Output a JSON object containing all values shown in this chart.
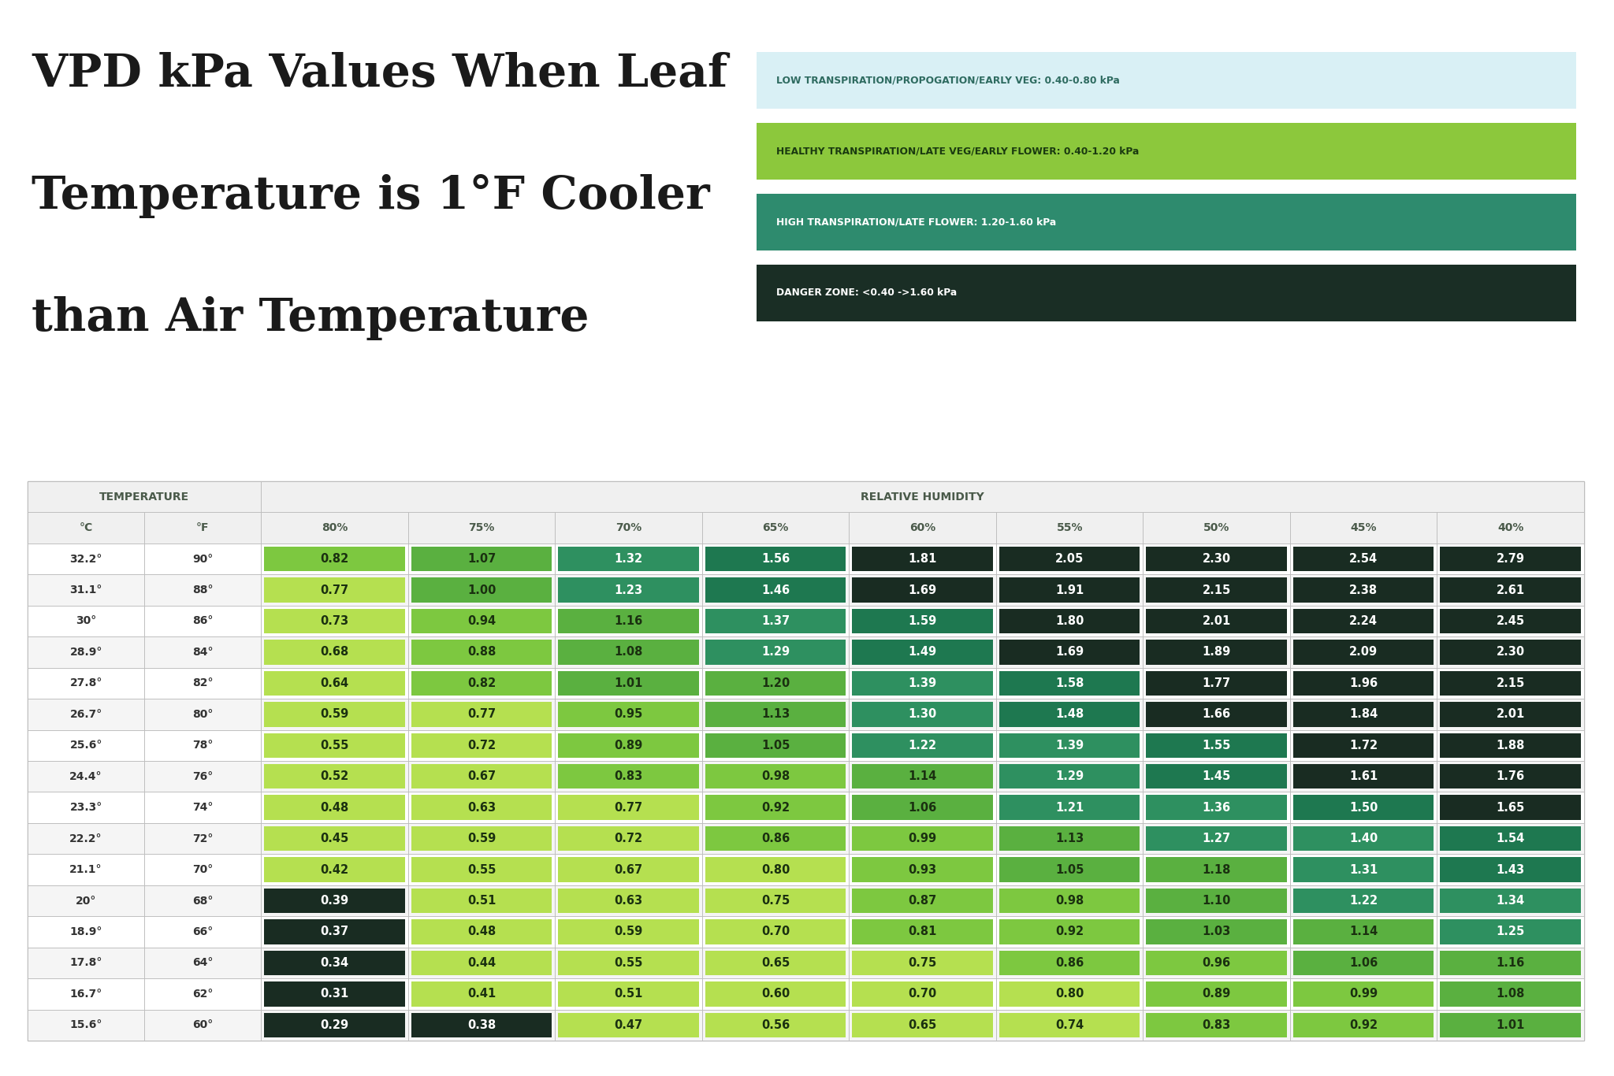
{
  "title_line1": "VPD kPa Values When Leaf",
  "title_line2": "Temperature is 1°F Cooler",
  "title_line3": "than Air Temperature",
  "background_color": "#ffffff",
  "temp_c": [
    "32.2°",
    "31.1°",
    "30°",
    "28.9°",
    "27.8°",
    "26.7°",
    "25.6°",
    "24.4°",
    "23.3°",
    "22.2°",
    "21.1°",
    "20°",
    "18.9°",
    "17.8°",
    "16.7°",
    "15.6°"
  ],
  "temp_f": [
    "90°",
    "88°",
    "86°",
    "84°",
    "82°",
    "80°",
    "78°",
    "76°",
    "74°",
    "72°",
    "70°",
    "68°",
    "66°",
    "64°",
    "62°",
    "60°"
  ],
  "humidity_cols": [
    "80%",
    "75%",
    "70%",
    "65%",
    "60%",
    "55%",
    "50%",
    "45%",
    "40%"
  ],
  "vpd_values": [
    [
      0.82,
      1.07,
      1.32,
      1.56,
      1.81,
      2.05,
      2.3,
      2.54,
      2.79
    ],
    [
      0.77,
      1.0,
      1.23,
      1.46,
      1.69,
      1.91,
      2.15,
      2.38,
      2.61
    ],
    [
      0.73,
      0.94,
      1.16,
      1.37,
      1.59,
      1.8,
      2.01,
      2.24,
      2.45
    ],
    [
      0.68,
      0.88,
      1.08,
      1.29,
      1.49,
      1.69,
      1.89,
      2.09,
      2.3
    ],
    [
      0.64,
      0.82,
      1.01,
      1.2,
      1.39,
      1.58,
      1.77,
      1.96,
      2.15
    ],
    [
      0.59,
      0.77,
      0.95,
      1.13,
      1.3,
      1.48,
      1.66,
      1.84,
      2.01
    ],
    [
      0.55,
      0.72,
      0.89,
      1.05,
      1.22,
      1.39,
      1.55,
      1.72,
      1.88
    ],
    [
      0.52,
      0.67,
      0.83,
      0.98,
      1.14,
      1.29,
      1.45,
      1.61,
      1.76
    ],
    [
      0.48,
      0.63,
      0.77,
      0.92,
      1.06,
      1.21,
      1.36,
      1.5,
      1.65
    ],
    [
      0.45,
      0.59,
      0.72,
      0.86,
      0.99,
      1.13,
      1.27,
      1.4,
      1.54
    ],
    [
      0.42,
      0.55,
      0.67,
      0.8,
      0.93,
      1.05,
      1.18,
      1.31,
      1.43
    ],
    [
      0.39,
      0.51,
      0.63,
      0.75,
      0.87,
      0.98,
      1.1,
      1.22,
      1.34
    ],
    [
      0.37,
      0.48,
      0.59,
      0.7,
      0.81,
      0.92,
      1.03,
      1.14,
      1.25
    ],
    [
      0.34,
      0.44,
      0.55,
      0.65,
      0.75,
      0.86,
      0.96,
      1.06,
      1.16
    ],
    [
      0.31,
      0.41,
      0.51,
      0.6,
      0.7,
      0.8,
      0.89,
      0.99,
      1.08
    ],
    [
      0.29,
      0.38,
      0.47,
      0.56,
      0.65,
      0.74,
      0.83,
      0.92,
      1.01
    ]
  ],
  "legend_labels": [
    "LOW TRANSPIRATION/PROPOGATION/EARLY VEG: 0.40-0.80 kPa",
    "HEALTHY TRANSPIRATION/LATE VEG/EARLY FLOWER: 0.40-1.20 kPa",
    "HIGH TRANSPIRATION/LATE FLOWER: 1.20-1.60 kPa",
    "DANGER ZONE: <0.40 ->1.60 kPa"
  ],
  "legend_bg_colors": [
    "#d9f0f5",
    "#8cc83c",
    "#2e8b6e",
    "#1a2e25"
  ],
  "legend_text_colors": [
    "#2e6b60",
    "#1a3a10",
    "#ffffff",
    "#ffffff"
  ],
  "header_text_color": "#4a5a4a",
  "cell_color_danger_low": "#1a2e25",
  "cell_color_light_green": "#b5e050",
  "cell_color_mid_green": "#6db84a",
  "cell_color_dark_green": "#2e8b6e",
  "cell_color_danger_high": "#1a2e25",
  "cell_text_danger": "#ffffff",
  "cell_text_green": "#1a3010"
}
